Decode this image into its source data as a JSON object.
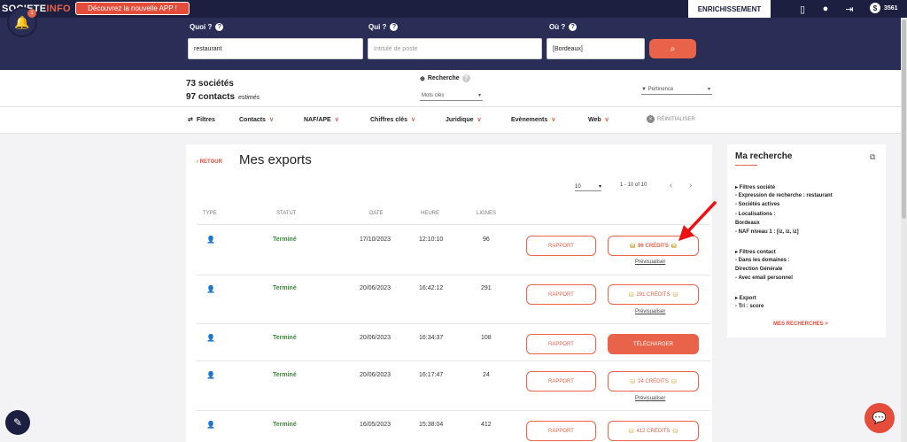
{
  "topbar": {
    "logo_main": "SOCIETE",
    "logo_accent": "INFO",
    "app_button": "Découvrez la nouvelle APP !",
    "enrich_button": "ENRICHISSEMENT",
    "credits": "3561",
    "notif_count": "1"
  },
  "search": {
    "quoi_label": "Quoi ?",
    "quoi_value": "restaurant",
    "qui_label": "Qui ?",
    "qui_placeholder": "Intitulé de poste",
    "ou_label": "Où ?",
    "ou_value": "[Bordeaux]"
  },
  "results": {
    "companies": "73 sociétés",
    "contacts": "97 contacts",
    "estimated": "estimés",
    "recherche_label": "Recherche",
    "recherche_value": "Mots clés",
    "sort_value": "Pertinence"
  },
  "filters": {
    "label": "Filtres",
    "items": [
      "Contacts",
      "NAF/APE",
      "Chiffres clés",
      "Juridique",
      "Evènements",
      "Web"
    ],
    "reset": "RÉINITIALISER"
  },
  "exports": {
    "back": "RETOUR",
    "title": "Mes exports",
    "per_page": "10",
    "pagination": "1 - 10 of 10",
    "columns": {
      "type": "TYPE",
      "statut": "STATUT",
      "date": "DATE",
      "heure": "HEURE",
      "lignes": "LIGNES"
    },
    "rapport_label": "RAPPORT",
    "preview_label": "Prévisualiser",
    "rows": [
      {
        "status": "Terminé",
        "date": "17/10/2023",
        "time": "12:10:10",
        "lines": "96",
        "action": "96 CRÉDITS"
      },
      {
        "status": "Terminé",
        "date": "20/06/2023",
        "time": "16:42:12",
        "lines": "291",
        "action": "291 CRÉDITS"
      },
      {
        "status": "Terminé",
        "date": "20/06/2023",
        "time": "16:34:37",
        "lines": "108",
        "action": "TÉLÉCHARGER"
      },
      {
        "status": "Terminé",
        "date": "20/06/2023",
        "time": "16:17:47",
        "lines": "24",
        "action": "24 CRÉDITS"
      },
      {
        "status": "Terminé",
        "date": "16/05/2023",
        "time": "15:38:04",
        "lines": "412",
        "action": "412 CRÉDITS"
      }
    ]
  },
  "side": {
    "title": "Ma recherche",
    "lines": [
      "▸ Filtres société",
      "- Expression de recherche : restaurant",
      "- Sociétés actives",
      "- Localisations :",
      "Bordeaux",
      "- NAF niveau 1 : [iz, iz, iz]",
      "",
      "▸ Filtres contact",
      "- Dans les domaines :",
      "Direction Générale",
      "- Avec email personnel",
      "",
      "▸ Export",
      "- Tri : score"
    ],
    "link": "MES RECHERCHES >"
  },
  "colors": {
    "navy": "#1c1f3f",
    "accent": "#e8634a",
    "success": "#3a8a3a"
  }
}
